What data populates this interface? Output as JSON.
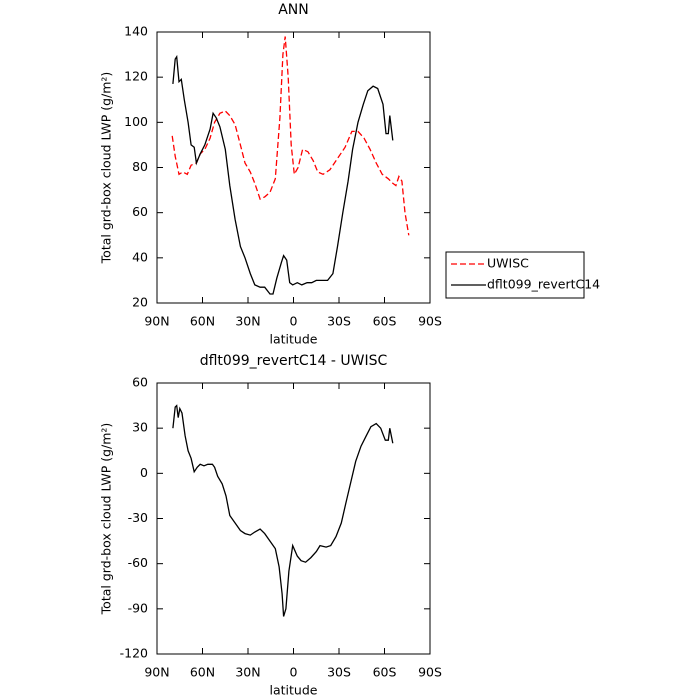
{
  "chart_data": [
    {
      "type": "line",
      "title": "ANN",
      "xlabel": "latitude",
      "ylabel": "Total grd-box cloud LWP (g/m²)",
      "xlim": [
        90,
        -90
      ],
      "xticks": [
        {
          "value": 90,
          "label": "90N"
        },
        {
          "value": 60,
          "label": "60N"
        },
        {
          "value": 30,
          "label": "30N"
        },
        0,
        {
          "value": -30,
          "label": "30S"
        },
        {
          "value": -60,
          "label": "60S"
        },
        {
          "value": -90,
          "label": "90S"
        }
      ],
      "ylim": [
        20,
        140
      ],
      "yticks": [
        20,
        40,
        60,
        80,
        100,
        120,
        140
      ],
      "legend": "outside-right",
      "series": [
        {
          "name": "UWISC",
          "color": "#ff0000",
          "dashed": true,
          "x": [
            80,
            78,
            75.5,
            73,
            70,
            67.5,
            64,
            61.5,
            58.5,
            55,
            52,
            48.5,
            45,
            42,
            38.5,
            35,
            32,
            28.5,
            25.5,
            22,
            19,
            15.5,
            12,
            9,
            7,
            5.5,
            3.5,
            1.5,
            -0.5,
            -3,
            -6,
            -9.5,
            -13,
            -16,
            -19.5,
            -24,
            -29,
            -34,
            -38.5,
            -42.5,
            -46.5,
            -50.5,
            -54.5,
            -58.5,
            -62.5,
            -65.5,
            -67.5,
            -69.5,
            -71.5,
            -73.5,
            -76
          ],
          "values": [
            94,
            85,
            77,
            78,
            77,
            81,
            82,
            86,
            88,
            93,
            100,
            104,
            105,
            103,
            99,
            90,
            82,
            78,
            73,
            66,
            67,
            69,
            75,
            102,
            130,
            138,
            120,
            90,
            77,
            80,
            88,
            87,
            83,
            78,
            77,
            79,
            84,
            89,
            96,
            96,
            93,
            88,
            82,
            77,
            75,
            73,
            72,
            76,
            74,
            60,
            50
          ]
        },
        {
          "name": "dflt099_revertC14",
          "color": "#000000",
          "dashed": false,
          "x": [
            79.5,
            78,
            77,
            75.5,
            74,
            72,
            69.5,
            67.5,
            65.5,
            64,
            61.5,
            58.5,
            55,
            53,
            51,
            48.5,
            45,
            42,
            38.5,
            35,
            32,
            28.5,
            25.5,
            22,
            19,
            15.5,
            13.5,
            11,
            8,
            6.5,
            4.5,
            2.5,
            0.5,
            -2.5,
            -5.5,
            -9,
            -12,
            -15,
            -19,
            -22.5,
            -26,
            -29,
            -32.5,
            -36,
            -39,
            -42.5,
            -46,
            -49,
            -52.5,
            -55.5,
            -59,
            -61,
            -62.5,
            -63.5,
            -65.5
          ],
          "values": [
            117,
            128,
            129,
            118,
            119,
            110,
            100,
            90,
            89,
            82,
            86,
            90,
            97,
            104,
            102,
            98,
            88,
            72,
            57,
            45,
            40,
            33,
            28,
            27,
            27,
            24,
            24,
            31,
            38,
            41,
            39,
            29,
            28,
            29,
            28,
            29,
            29,
            30,
            30,
            30,
            33,
            45,
            60,
            74,
            88,
            100,
            108,
            114,
            116,
            115,
            108,
            95,
            95,
            103,
            92
          ]
        }
      ]
    },
    {
      "type": "line",
      "title": "dflt099_revertC14 - UWISC",
      "xlabel": "latitude",
      "ylabel": "Total grd-box cloud LWP (g/m²)",
      "xlim": [
        90,
        -90
      ],
      "xticks": [
        {
          "value": 90,
          "label": "90N"
        },
        {
          "value": 60,
          "label": "60N"
        },
        {
          "value": 30,
          "label": "30N"
        },
        0,
        {
          "value": -30,
          "label": "30S"
        },
        {
          "value": -60,
          "label": "60S"
        },
        {
          "value": -90,
          "label": "90S"
        }
      ],
      "ylim": [
        -120,
        60
      ],
      "yticks": [
        -120,
        -90,
        -60,
        -30,
        0,
        30,
        60
      ],
      "series": [
        {
          "color": "#000000",
          "dashed": false,
          "x": [
            79.5,
            78,
            77,
            76,
            75,
            73.5,
            71.5,
            69.5,
            67.5,
            65.5,
            63.5,
            61.5,
            59,
            56.5,
            53.5,
            52,
            50,
            47,
            44.5,
            42,
            38.5,
            35,
            32,
            28.5,
            25.5,
            22,
            19,
            15.5,
            12,
            9.5,
            7.5,
            6.5,
            5,
            3,
            0.5,
            -2.5,
            -5,
            -8,
            -11.5,
            -15,
            -17.5,
            -21.5,
            -24.5,
            -28,
            -31.5,
            -34.5,
            -38,
            -41,
            -44.5,
            -48,
            -51,
            -54.5,
            -57.5,
            -60.5,
            -62.5,
            -63.5,
            -65.5
          ],
          "values": [
            30,
            44,
            45,
            37,
            43,
            40,
            25,
            15,
            10,
            1,
            4,
            6,
            5,
            6,
            6,
            4,
            -2,
            -7,
            -15,
            -28,
            -33,
            -38,
            -40,
            -41,
            -39,
            -37,
            -40,
            -45,
            -50,
            -62,
            -80,
            -95,
            -90,
            -65,
            -48,
            -55,
            -58,
            -59,
            -56,
            -52,
            -48,
            -49,
            -48,
            -42,
            -33,
            -20,
            -5,
            8,
            18,
            25,
            31,
            33,
            30,
            22,
            22,
            30,
            20
          ]
        }
      ]
    }
  ]
}
